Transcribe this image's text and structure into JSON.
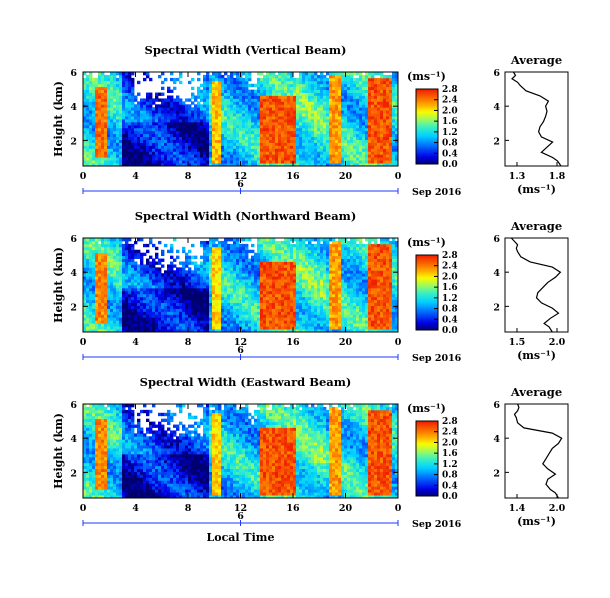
{
  "chart_data": [
    {
      "type": "heatmap",
      "title": "Spectral Width (Vertical Beam)",
      "ylabel": "Height (km)",
      "x_ticks": [
        "0",
        "4",
        "8",
        "12",
        "16",
        "20",
        "0"
      ],
      "y_ticks": [
        "6",
        "4",
        "2"
      ],
      "date_tick": "6",
      "date_label": "Sep 2016",
      "xlim": [
        0,
        24
      ],
      "ylim": [
        0.5,
        6
      ],
      "colorbar": {
        "unit": "(ms⁻¹)",
        "ticks": [
          "0.0",
          "0.4",
          "0.8",
          "1.2",
          "1.6",
          "2.0",
          "2.4",
          "2.8"
        ],
        "range": [
          0,
          2.8
        ]
      },
      "events": [
        {
          "start": 1.0,
          "end": 1.8,
          "hmin": 1.0,
          "hmax": 5.2,
          "value": 2.7
        },
        {
          "start": 9.8,
          "end": 10.4,
          "hmin": 0.6,
          "hmax": 5.5,
          "value": 2.4
        },
        {
          "start": 13.6,
          "end": 16.2,
          "hmin": 0.6,
          "hmax": 4.7,
          "value": 2.8
        },
        {
          "start": 18.8,
          "end": 19.6,
          "hmin": 0.6,
          "hmax": 5.9,
          "value": 2.5
        },
        {
          "start": 21.7,
          "end": 23.5,
          "hmin": 0.6,
          "hmax": 5.6,
          "value": 2.8
        }
      ],
      "average_profile": {
        "title": "Average",
        "xlabel": "(ms⁻¹)",
        "x_ticks": [
          "1.3",
          "1.8"
        ],
        "xlim": [
          1.1,
          2.0
        ],
        "ylim": [
          0.5,
          6
        ],
        "y_ticks": [
          "6",
          "4",
          "2"
        ],
        "height": [
          0.5,
          0.8,
          1.0,
          1.3,
          1.6,
          1.9,
          2.2,
          2.5,
          2.8,
          3.1,
          3.4,
          3.7,
          4.0,
          4.3,
          4.6,
          4.9,
          5.2,
          5.4,
          5.6,
          5.8,
          6.0
        ],
        "width": [
          1.9,
          1.85,
          1.78,
          1.62,
          1.7,
          1.78,
          1.62,
          1.58,
          1.6,
          1.65,
          1.68,
          1.7,
          1.68,
          1.72,
          1.6,
          1.4,
          1.32,
          1.28,
          1.2,
          1.25,
          1.22
        ]
      }
    },
    {
      "type": "heatmap",
      "title": "Spectral Width (Northward Beam)",
      "ylabel": "Height (km)",
      "x_ticks": [
        "0",
        "4",
        "8",
        "12",
        "16",
        "20",
        "0"
      ],
      "y_ticks": [
        "6",
        "4",
        "2"
      ],
      "date_tick": "6",
      "date_label": "Sep 2016",
      "xlim": [
        0,
        24
      ],
      "ylim": [
        0.5,
        6
      ],
      "colorbar": {
        "unit": "(ms⁻¹)",
        "ticks": [
          "0.0",
          "0.4",
          "0.8",
          "1.2",
          "1.6",
          "2.0",
          "2.4",
          "2.8"
        ],
        "range": [
          0,
          2.8
        ]
      },
      "events": [
        {
          "start": 1.0,
          "end": 1.8,
          "hmin": 1.0,
          "hmax": 5.2,
          "value": 2.6
        },
        {
          "start": 9.8,
          "end": 10.4,
          "hmin": 0.6,
          "hmax": 5.5,
          "value": 2.3
        },
        {
          "start": 13.6,
          "end": 16.2,
          "hmin": 0.6,
          "hmax": 4.7,
          "value": 2.8
        },
        {
          "start": 18.8,
          "end": 19.6,
          "hmin": 0.6,
          "hmax": 5.9,
          "value": 2.5
        },
        {
          "start": 21.7,
          "end": 23.5,
          "hmin": 0.6,
          "hmax": 5.6,
          "value": 2.8
        }
      ],
      "average_profile": {
        "title": "Average",
        "xlabel": "(ms⁻¹)",
        "x_ticks": [
          "1.5",
          "2.0"
        ],
        "xlim": [
          1.2,
          2.2
        ],
        "ylim": [
          0.5,
          6
        ],
        "y_ticks": [
          "6",
          "4",
          "2"
        ],
        "height": [
          0.5,
          0.8,
          1.0,
          1.3,
          1.6,
          1.9,
          2.2,
          2.5,
          2.8,
          3.1,
          3.4,
          3.7,
          4.0,
          4.3,
          4.6,
          4.9,
          5.2,
          5.4,
          5.6,
          5.8,
          6.0
        ],
        "width": [
          1.95,
          1.9,
          1.82,
          1.92,
          2.05,
          1.95,
          1.78,
          1.7,
          1.72,
          1.8,
          1.88,
          2.0,
          2.08,
          1.95,
          1.6,
          1.45,
          1.4,
          1.38,
          1.4,
          1.35,
          1.3
        ]
      }
    },
    {
      "type": "heatmap",
      "title": "Spectral Width (Eastward Beam)",
      "ylabel": "Height (km)",
      "x_ticks": [
        "0",
        "4",
        "8",
        "12",
        "16",
        "20",
        "0"
      ],
      "y_ticks": [
        "6",
        "4",
        "2"
      ],
      "date_tick": "6",
      "date_label": "Sep 2016",
      "xaxis_title": "Local Time",
      "xlim": [
        0,
        24
      ],
      "ylim": [
        0.5,
        6
      ],
      "colorbar": {
        "unit": "(ms⁻¹)",
        "ticks": [
          "0.0",
          "0.4",
          "0.8",
          "1.2",
          "1.6",
          "2.0",
          "2.4",
          "2.8"
        ],
        "range": [
          0,
          2.8
        ]
      },
      "events": [
        {
          "start": 1.0,
          "end": 1.8,
          "hmin": 1.0,
          "hmax": 5.2,
          "value": 2.6
        },
        {
          "start": 9.8,
          "end": 10.4,
          "hmin": 0.6,
          "hmax": 5.5,
          "value": 2.3
        },
        {
          "start": 13.6,
          "end": 16.2,
          "hmin": 0.6,
          "hmax": 4.7,
          "value": 2.8
        },
        {
          "start": 18.8,
          "end": 19.6,
          "hmin": 0.6,
          "hmax": 5.9,
          "value": 2.5
        },
        {
          "start": 21.7,
          "end": 23.5,
          "hmin": 0.6,
          "hmax": 5.6,
          "value": 2.8
        }
      ],
      "average_profile": {
        "title": "Average",
        "xlabel": "(ms⁻¹)",
        "x_ticks": [
          "1.4",
          "2.0"
        ],
        "xlim": [
          1.2,
          2.2
        ],
        "ylim": [
          0.5,
          6
        ],
        "y_ticks": [
          "6",
          "4",
          "2"
        ],
        "height": [
          0.5,
          0.8,
          1.0,
          1.3,
          1.6,
          1.9,
          2.2,
          2.5,
          2.8,
          3.1,
          3.4,
          3.7,
          4.0,
          4.3,
          4.6,
          4.9,
          5.2,
          5.4,
          5.6,
          5.8,
          6.0
        ],
        "width": [
          2.05,
          2.0,
          1.92,
          1.85,
          1.88,
          2.0,
          1.88,
          1.8,
          1.85,
          1.9,
          1.95,
          2.05,
          2.1,
          1.95,
          1.5,
          1.4,
          1.38,
          1.35,
          1.4,
          1.42,
          1.4
        ]
      }
    }
  ]
}
